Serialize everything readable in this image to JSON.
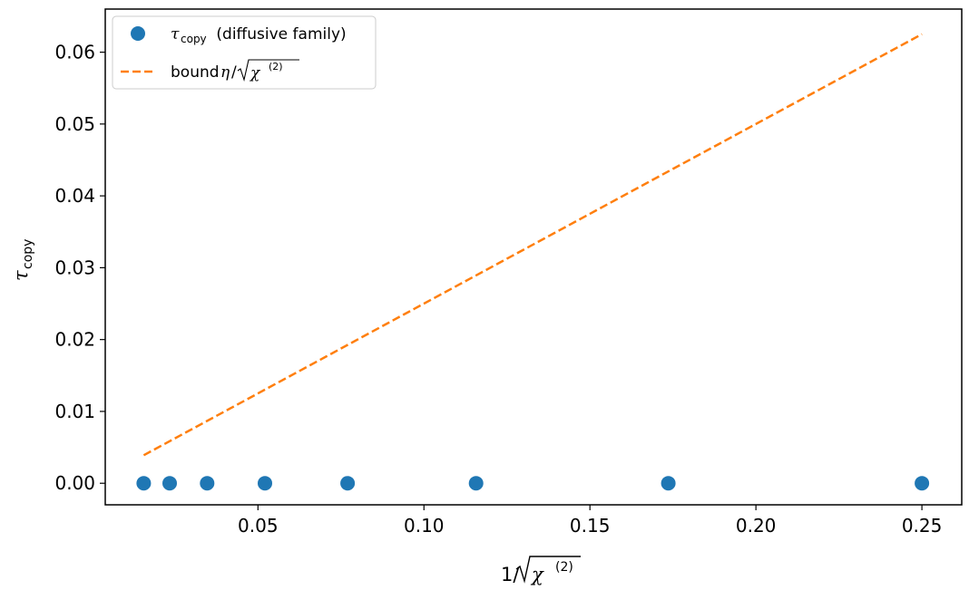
{
  "chart_data": {
    "type": "scatter",
    "xlabel": {
      "prefix": "1/",
      "symbol": "χ",
      "sup": "(2)"
    },
    "ylabel": {
      "symbol": "τ",
      "sub": "copy"
    },
    "xlim": [
      0.004,
      0.262
    ],
    "ylim": [
      -0.003,
      0.066
    ],
    "x_ticks": [
      0.05,
      0.1,
      0.15,
      0.2,
      0.25
    ],
    "x_tick_labels": [
      "0.05",
      "0.10",
      "0.15",
      "0.20",
      "0.25"
    ],
    "y_ticks": [
      0.0,
      0.01,
      0.02,
      0.03,
      0.04,
      0.05,
      0.06
    ],
    "y_tick_labels": [
      "0.00",
      "0.01",
      "0.02",
      "0.03",
      "0.04",
      "0.05",
      "0.06"
    ],
    "grid": false,
    "legend_position": "top-left",
    "series": [
      {
        "name": "τcopy (diffusive family)",
        "legend": {
          "symbol": "τ",
          "sub": "copy",
          "text": " (diffusive family)"
        },
        "type": "scatter",
        "color": "#1f77b4",
        "x": [
          0.0156,
          0.0234,
          0.0347,
          0.0521,
          0.077,
          0.1157,
          0.1736,
          0.25
        ],
        "y": [
          0,
          0,
          0,
          0,
          0,
          0,
          0,
          0
        ]
      },
      {
        "name": "bound η/√χ(2)",
        "legend": {
          "text": "bound ",
          "symbol": "η",
          "slash": "/",
          "root_symbol": "χ",
          "sup": "(2)"
        },
        "type": "line",
        "style": "dashed",
        "color": "#ff7f0e",
        "x": [
          0.0156,
          0.25
        ],
        "y": [
          0.0039,
          0.0625
        ]
      }
    ]
  }
}
